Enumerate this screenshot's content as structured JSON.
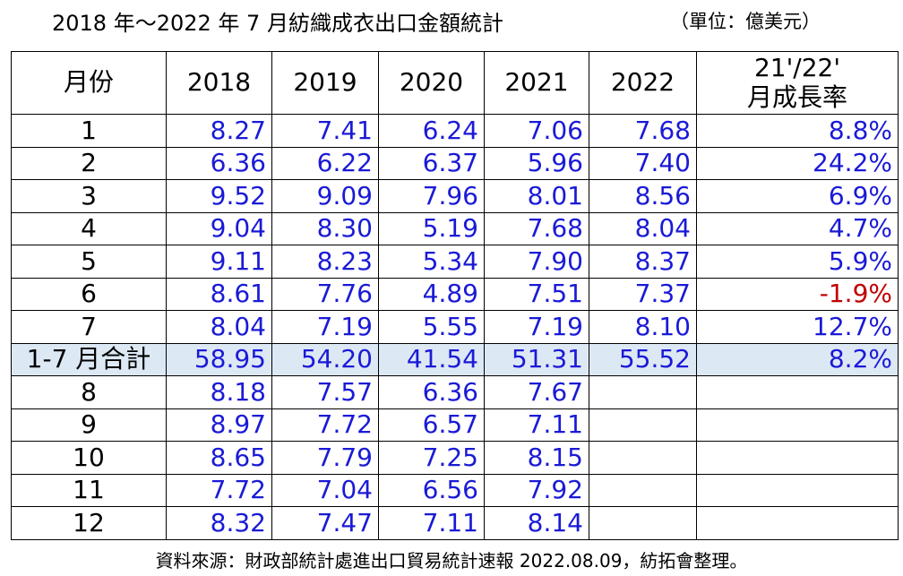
{
  "header": {
    "title": "2018 年～2022 年 7 月紡織成衣出口金額統計",
    "unit": "（單位：億美元）"
  },
  "table": {
    "columns": [
      "月份",
      "2018",
      "2019",
      "2020",
      "2021",
      "2022",
      "21'/22'\n月成長率"
    ],
    "rows": [
      [
        "1",
        "8.27",
        "7.41",
        "6.24",
        "7.06",
        "7.68",
        "8.8%"
      ],
      [
        "2",
        "6.36",
        "6.22",
        "6.37",
        "5.96",
        "7.40",
        "24.2%"
      ],
      [
        "3",
        "9.52",
        "9.09",
        "7.96",
        "8.01",
        "8.56",
        "6.9%"
      ],
      [
        "4",
        "9.04",
        "8.30",
        "5.19",
        "7.68",
        "8.04",
        "4.7%"
      ],
      [
        "5",
        "9.11",
        "8.23",
        "5.34",
        "7.90",
        "8.37",
        "5.9%"
      ],
      [
        "6",
        "8.61",
        "7.76",
        "4.89",
        "7.51",
        "7.37",
        "-1.9%"
      ],
      [
        "7",
        "8.04",
        "7.19",
        "5.55",
        "7.19",
        "8.10",
        "12.7%"
      ],
      [
        "1-7 月合計",
        "58.95",
        "54.20",
        "41.54",
        "51.31",
        "55.52",
        "8.2%"
      ],
      [
        "8",
        "8.18",
        "7.57",
        "6.36",
        "7.67"
      ],
      [
        "9",
        "8.97",
        "7.72",
        "6.57",
        "7.11"
      ],
      [
        "10",
        "8.65",
        "7.79",
        "7.25",
        "8.15"
      ],
      [
        "11",
        "7.72",
        "7.04",
        "6.56",
        "7.92"
      ],
      [
        "12",
        "8.32",
        "7.47",
        "7.11",
        "8.14"
      ]
    ]
  },
  "footer": {
    "source": "資料來源：財政部統計處進出口貿易統計速報 2022.08.09，紡拓會整理。"
  }
}
